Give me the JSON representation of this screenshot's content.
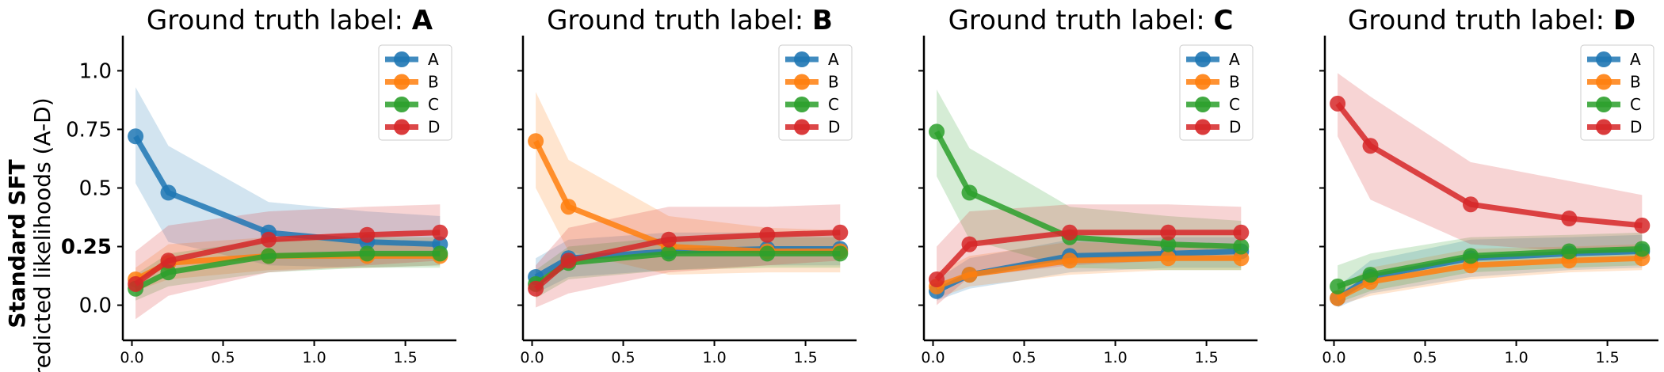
{
  "y_axis_label_bold": "Standard SFT",
  "y_axis_label": "Predicted likelihoods (A-D)",
  "colors": {
    "A": "#1f77b4",
    "B": "#ff7f0e",
    "C": "#2ca02c",
    "D": "#d62728"
  },
  "chart_data": [
    {
      "type": "line",
      "title_prefix": "Ground truth label: ",
      "title_letter": "A",
      "x": [
        0.02,
        0.2,
        0.75,
        1.29,
        1.69
      ],
      "xticks": [
        "0.0",
        "0.5",
        "1.0",
        "1.5"
      ],
      "xlim": [
        -0.05,
        1.78
      ],
      "ylim": [
        -0.15,
        1.15
      ],
      "yticks": [
        "0.0",
        "0.25",
        "0.5",
        "0.75",
        "1.0"
      ],
      "legend": [
        "A",
        "B",
        "C",
        "D"
      ],
      "legend_position": "top-right",
      "series": [
        {
          "name": "A",
          "values": [
            0.72,
            0.48,
            0.31,
            0.27,
            0.26
          ],
          "band_low": [
            0.52,
            0.27,
            0.17,
            0.16,
            0.17
          ],
          "band_high": [
            0.93,
            0.68,
            0.44,
            0.4,
            0.38
          ]
        },
        {
          "name": "B",
          "values": [
            0.11,
            0.18,
            0.21,
            0.21,
            0.21
          ],
          "band_low": [
            0.06,
            0.11,
            0.15,
            0.16,
            0.17
          ],
          "band_high": [
            0.16,
            0.26,
            0.29,
            0.28,
            0.27
          ]
        },
        {
          "name": "C",
          "values": [
            0.07,
            0.14,
            0.21,
            0.22,
            0.22
          ],
          "band_low": [
            0.02,
            0.08,
            0.14,
            0.16,
            0.16
          ],
          "band_high": [
            0.13,
            0.22,
            0.28,
            0.29,
            0.29
          ]
        },
        {
          "name": "D",
          "values": [
            0.09,
            0.19,
            0.28,
            0.3,
            0.31
          ],
          "band_low": [
            -0.06,
            0.04,
            0.14,
            0.17,
            0.19
          ],
          "band_high": [
            0.23,
            0.34,
            0.4,
            0.42,
            0.43
          ]
        }
      ]
    },
    {
      "type": "line",
      "title_prefix": "Ground truth label: ",
      "title_letter": "B",
      "x": [
        0.02,
        0.2,
        0.75,
        1.29,
        1.69
      ],
      "xticks": [
        "0.0",
        "0.5",
        "1.0",
        "1.5"
      ],
      "xlim": [
        -0.05,
        1.78
      ],
      "ylim": [
        -0.15,
        1.15
      ],
      "yticks": [
        "0.0",
        "0.25",
        "0.5",
        "0.75",
        "1.0"
      ],
      "legend": [
        "A",
        "B",
        "C",
        "D"
      ],
      "legend_position": "top-right",
      "series": [
        {
          "name": "A",
          "values": [
            0.12,
            0.2,
            0.23,
            0.24,
            0.24
          ],
          "band_low": [
            0.05,
            0.12,
            0.15,
            0.17,
            0.17
          ],
          "band_high": [
            0.2,
            0.28,
            0.31,
            0.31,
            0.31
          ]
        },
        {
          "name": "B",
          "values": [
            0.7,
            0.42,
            0.25,
            0.23,
            0.23
          ],
          "band_low": [
            0.5,
            0.23,
            0.13,
            0.14,
            0.14
          ],
          "band_high": [
            0.91,
            0.62,
            0.38,
            0.33,
            0.32
          ]
        },
        {
          "name": "C",
          "values": [
            0.09,
            0.18,
            0.22,
            0.22,
            0.22
          ],
          "band_low": [
            0.03,
            0.11,
            0.15,
            0.16,
            0.16
          ],
          "band_high": [
            0.15,
            0.25,
            0.29,
            0.29,
            0.29
          ]
        },
        {
          "name": "D",
          "values": [
            0.07,
            0.19,
            0.28,
            0.3,
            0.31
          ],
          "band_low": [
            -0.01,
            0.05,
            0.14,
            0.17,
            0.19
          ],
          "band_high": [
            0.17,
            0.33,
            0.42,
            0.42,
            0.43
          ]
        }
      ]
    },
    {
      "type": "line",
      "title_prefix": "Ground truth label: ",
      "title_letter": "C",
      "x": [
        0.02,
        0.2,
        0.75,
        1.29,
        1.69
      ],
      "xticks": [
        "0.0",
        "0.5",
        "1.0",
        "1.5"
      ],
      "xlim": [
        -0.05,
        1.78
      ],
      "ylim": [
        -0.15,
        1.15
      ],
      "yticks": [
        "0.0",
        "0.25",
        "0.5",
        "0.75",
        "1.0"
      ],
      "legend": [
        "A",
        "B",
        "C",
        "D"
      ],
      "legend_position": "top-right",
      "series": [
        {
          "name": "A",
          "values": [
            0.06,
            0.13,
            0.21,
            0.22,
            0.23
          ],
          "band_low": [
            0.02,
            0.07,
            0.14,
            0.16,
            0.16
          ],
          "band_high": [
            0.11,
            0.2,
            0.28,
            0.29,
            0.29
          ]
        },
        {
          "name": "B",
          "values": [
            0.08,
            0.13,
            0.19,
            0.2,
            0.2
          ],
          "band_low": [
            0.03,
            0.08,
            0.13,
            0.15,
            0.15
          ],
          "band_high": [
            0.14,
            0.21,
            0.27,
            0.26,
            0.26
          ]
        },
        {
          "name": "C",
          "values": [
            0.74,
            0.48,
            0.29,
            0.26,
            0.25
          ],
          "band_low": [
            0.55,
            0.28,
            0.16,
            0.15,
            0.15
          ],
          "band_high": [
            0.92,
            0.67,
            0.42,
            0.38,
            0.36
          ]
        },
        {
          "name": "D",
          "values": [
            0.11,
            0.26,
            0.31,
            0.31,
            0.31
          ],
          "band_low": [
            0.0,
            0.12,
            0.17,
            0.19,
            0.19
          ],
          "band_high": [
            0.25,
            0.4,
            0.43,
            0.43,
            0.42
          ]
        }
      ]
    },
    {
      "type": "line",
      "title_prefix": "Ground truth label: ",
      "title_letter": "D",
      "x": [
        0.02,
        0.2,
        0.75,
        1.29,
        1.69
      ],
      "xticks": [
        "0.0",
        "0.5",
        "1.0",
        "1.5"
      ],
      "xlim": [
        -0.05,
        1.78
      ],
      "ylim": [
        -0.15,
        1.15
      ],
      "yticks": [
        "0.0",
        "0.25",
        "0.5",
        "0.75",
        "1.0"
      ],
      "legend": [
        "A",
        "B",
        "C",
        "D"
      ],
      "legend_position": "top-right",
      "series": [
        {
          "name": "A",
          "values": [
            0.03,
            0.12,
            0.2,
            0.22,
            0.23
          ],
          "band_low": [
            -0.01,
            0.05,
            0.12,
            0.15,
            0.16
          ],
          "band_high": [
            0.08,
            0.19,
            0.28,
            0.29,
            0.3
          ]
        },
        {
          "name": "B",
          "values": [
            0.03,
            0.1,
            0.17,
            0.19,
            0.2
          ],
          "band_low": [
            0.0,
            0.04,
            0.11,
            0.14,
            0.15
          ],
          "band_high": [
            0.07,
            0.16,
            0.24,
            0.25,
            0.26
          ]
        },
        {
          "name": "C",
          "values": [
            0.08,
            0.13,
            0.21,
            0.23,
            0.24
          ],
          "band_low": [
            0.01,
            0.06,
            0.14,
            0.16,
            0.17
          ],
          "band_high": [
            0.17,
            0.22,
            0.29,
            0.3,
            0.31
          ]
        },
        {
          "name": "D",
          "values": [
            0.86,
            0.68,
            0.43,
            0.37,
            0.34
          ],
          "band_low": [
            0.72,
            0.45,
            0.26,
            0.23,
            0.22
          ],
          "band_high": [
            0.99,
            0.89,
            0.61,
            0.53,
            0.47
          ]
        }
      ]
    }
  ]
}
